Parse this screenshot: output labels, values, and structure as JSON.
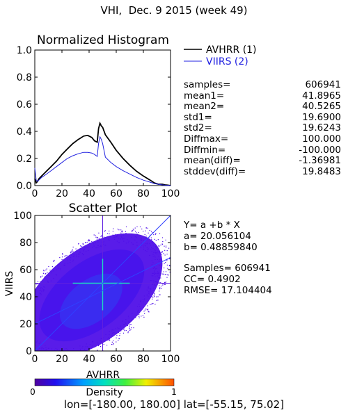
{
  "title": "VHI,  Dec. 9 2015 (week 49)",
  "footer": "lon=[-180.00, 180.00] lat=[-55.15, 75.02]",
  "histogram": {
    "title": "Normalized Histogram",
    "legend": [
      {
        "name": "AVHRR (1)",
        "color": "#000000"
      },
      {
        "name": "VIIRS (2)",
        "color": "#2020e0"
      }
    ],
    "stats": [
      {
        "label": "samples=",
        "value": "606941"
      },
      {
        "label": "mean1=",
        "value": "41.8965"
      },
      {
        "label": "mean2=",
        "value": "40.5265"
      },
      {
        "label": "std1=",
        "value": "19.6900"
      },
      {
        "label": "std2=",
        "value": "19.6243"
      },
      {
        "label": "Diffmax=",
        "value": "100.000"
      },
      {
        "label": "Diffmin=",
        "value": "-100.000"
      },
      {
        "label": "mean(diff)=",
        "value": "-1.36981"
      },
      {
        "label": "stddev(diff)=",
        "value": "19.8483"
      }
    ]
  },
  "scatter": {
    "title": "Scatter Plot",
    "equation": "Y= a +b * X",
    "a_text": "a= 20.056104",
    "b_text": "b= 0.48859840",
    "samples_text": "Samples= 606941",
    "cc_text": "CC=  0.4902",
    "rmse_text": "RMSE= 17.104404",
    "xlabel": "AVHRR",
    "ylabel": "VIIRS",
    "density_label": "Density",
    "density_min": "0",
    "density_max": "1",
    "point_color": "#5010e8",
    "core_color": "#3a2cf0",
    "center_color": "#20d8c0",
    "line_color": "#3040ff"
  },
  "chart_data": [
    {
      "type": "line",
      "title": "Normalized Histogram",
      "xlim": [
        0,
        100
      ],
      "ylim": [
        0,
        1.0
      ],
      "xticks": [
        0,
        20,
        40,
        60,
        80,
        100
      ],
      "yticks": [
        "0.0",
        "0.2",
        "0.4",
        "0.6",
        "0.8",
        "1.0"
      ],
      "legend_position": "top-right",
      "series": [
        {
          "name": "AVHRR (1)",
          "x": [
            0,
            1,
            2,
            3,
            5,
            8,
            12,
            16,
            20,
            24,
            28,
            32,
            36,
            39,
            42,
            44,
            46,
            47,
            48,
            49,
            50,
            52,
            56,
            60,
            65,
            70,
            75,
            80,
            85,
            88,
            91,
            94,
            96,
            98,
            100
          ],
          "y": [
            0.05,
            0.02,
            0.03,
            0.05,
            0.07,
            0.1,
            0.14,
            0.18,
            0.23,
            0.27,
            0.31,
            0.34,
            0.365,
            0.37,
            0.355,
            0.33,
            0.32,
            0.42,
            0.46,
            0.44,
            0.43,
            0.375,
            0.32,
            0.26,
            0.2,
            0.15,
            0.105,
            0.07,
            0.04,
            0.02,
            0.01,
            0.01,
            0.005,
            0.003,
            0.0
          ]
        },
        {
          "name": "VIIRS (2)",
          "x": [
            0,
            1,
            2,
            3,
            5,
            8,
            12,
            16,
            20,
            24,
            28,
            32,
            36,
            39,
            42,
            44,
            46,
            47,
            48,
            49,
            50,
            52,
            56,
            60,
            65,
            70,
            75,
            80,
            85,
            88,
            91,
            94,
            96,
            98,
            100
          ],
          "y": [
            0.13,
            0.04,
            0.03,
            0.04,
            0.06,
            0.08,
            0.11,
            0.14,
            0.17,
            0.2,
            0.22,
            0.235,
            0.245,
            0.245,
            0.24,
            0.23,
            0.215,
            0.31,
            0.36,
            0.34,
            0.31,
            0.21,
            0.17,
            0.14,
            0.11,
            0.085,
            0.06,
            0.04,
            0.025,
            0.015,
            0.01,
            0.005,
            0.003,
            0.002,
            0.0
          ]
        }
      ]
    },
    {
      "type": "scatter",
      "title": "Scatter Plot",
      "xlabel": "AVHRR",
      "ylabel": "VIIRS",
      "xlim": [
        0,
        100
      ],
      "ylim": [
        0,
        100
      ],
      "xticks": [
        0,
        20,
        40,
        60,
        80,
        100
      ],
      "yticks": [
        0,
        20,
        40,
        60,
        80,
        100
      ],
      "regression": {
        "a": 20.056104,
        "b": 0.4885984
      },
      "reference_lines": {
        "x": 50,
        "y": 50,
        "one_to_one": true
      },
      "samples": 606941,
      "cc": 0.4902,
      "rmse": 17.104404,
      "colorbar": {
        "label": "Density",
        "min": 0,
        "max": 1
      }
    }
  ]
}
